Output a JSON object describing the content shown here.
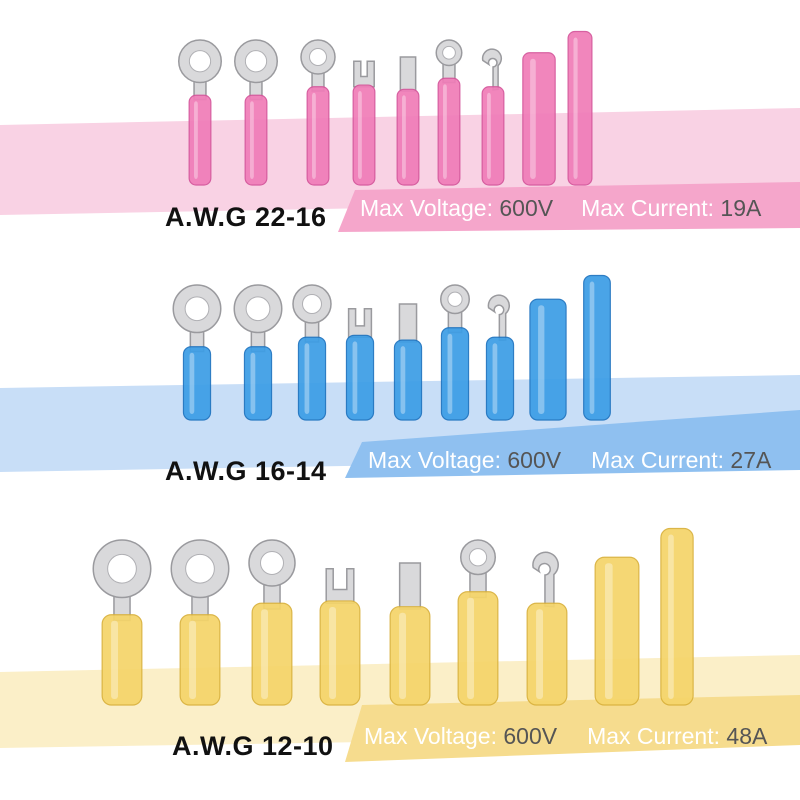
{
  "rows": [
    {
      "awg": "A.W.G",
      "gauge": "22-16",
      "voltage_label": "Max Voltage:",
      "voltage": "600V",
      "current_label": "Max Current:",
      "current": "19A"
    },
    {
      "awg": "A.W.G",
      "gauge": "16-14",
      "voltage_label": "Max Voltage:",
      "voltage": "600V",
      "current_label": "Max Current:",
      "current": "27A"
    },
    {
      "awg": "A.W.G",
      "gauge": "12-10",
      "voltage_label": "Max Voltage:",
      "voltage": "600V",
      "current_label": "Max Current:",
      "current": "48A"
    }
  ]
}
